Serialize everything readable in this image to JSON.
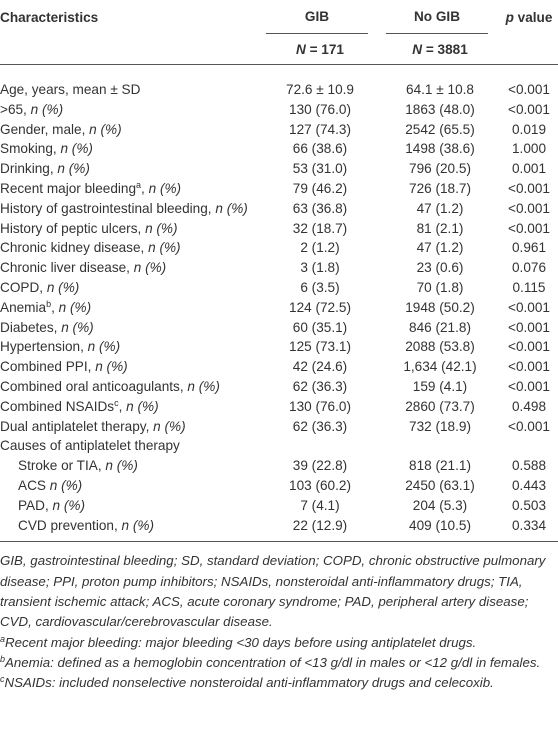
{
  "header": {
    "characteristics": "Characteristics",
    "gib": "GIB",
    "nogib": "No GIB",
    "p_value": {
      "symbol": "p",
      "text": "value"
    },
    "gib_n": {
      "symbol": "N",
      "text": "= 171"
    },
    "nogib_n": {
      "symbol": "N",
      "text": "= 3881"
    }
  },
  "table": {
    "rows": [
      {
        "label": "Age, years, mean ± SD",
        "gib": "72.6 ± 10.9",
        "nogib": "64.1 ± 10.8",
        "p": "<0.001"
      },
      {
        "label": ">65,",
        "unit": "n (%)",
        "gib": "130 (76.0)",
        "nogib": "1863 (48.0)",
        "p": "<0.001"
      },
      {
        "label": "Gender, male,",
        "unit": "n (%)",
        "gib": "127 (74.3)",
        "nogib": "2542 (65.5)",
        "p": "0.019"
      },
      {
        "label": "Smoking,",
        "unit": "n (%)",
        "gib": "66 (38.6)",
        "nogib": "1498 (38.6)",
        "p": "1.000"
      },
      {
        "label": "Drinking,",
        "unit": "n (%)",
        "gib": "53 (31.0)",
        "nogib": "796 (20.5)",
        "p": "0.001"
      },
      {
        "label": "Recent major bleeding",
        "sup": "a",
        "after": ",",
        "unit": "n (%)",
        "gib": "79 (46.2)",
        "nogib": "726 (18.7)",
        "p": "<0.001"
      },
      {
        "label": "History of gastrointestinal bleeding,",
        "unit": "n (%)",
        "gib": "63 (36.8)",
        "nogib": "47 (1.2)",
        "p": "<0.001"
      },
      {
        "label": "History of peptic ulcers,",
        "unit": "n (%)",
        "gib": "32 (18.7)",
        "nogib": "81 (2.1)",
        "p": "<0.001"
      },
      {
        "label": "Chronic kidney disease,",
        "unit": "n (%)",
        "gib": "2 (1.2)",
        "nogib": "47 (1.2)",
        "p": "0.961"
      },
      {
        "label": "Chronic liver disease,",
        "unit": "n (%)",
        "gib": "3 (1.8)",
        "nogib": "23 (0.6)",
        "p": "0.076"
      },
      {
        "label": "COPD,",
        "unit": "n (%)",
        "gib": "6 (3.5)",
        "nogib": "70 (1.8)",
        "p": "0.115"
      },
      {
        "label": "Anemia",
        "sup": "b",
        "after": ",",
        "unit": "n (%)",
        "gib": "124 (72.5)",
        "nogib": "1948 (50.2)",
        "p": "<0.001"
      },
      {
        "label": "Diabetes,",
        "unit": "n (%)",
        "gib": "60 (35.1)",
        "nogib": "846 (21.8)",
        "p": "<0.001"
      },
      {
        "label": "Hypertension,",
        "unit": "n (%)",
        "gib": "125 (73.1)",
        "nogib": "2088 (53.8)",
        "p": "<0.001"
      },
      {
        "label": "Combined PPI,",
        "unit": "n (%)",
        "gib": "42 (24.6)",
        "nogib": "1,634 (42.1)",
        "p": "<0.001"
      },
      {
        "label": "Combined oral anticoagulants,",
        "unit": "n (%)",
        "gib": "62 (36.3)",
        "nogib": "159 (4.1)",
        "p": "<0.001"
      },
      {
        "label": "Combined NSAIDs",
        "sup": "c",
        "after": ",",
        "unit": "n (%)",
        "gib": "130 (76.0)",
        "nogib": "2860 (73.7)",
        "p": "0.498"
      },
      {
        "label": "Dual antiplatelet therapy,",
        "unit": "n (%)",
        "gib": "62 (36.3)",
        "nogib": "732 (18.9)",
        "p": "<0.001"
      }
    ],
    "subgroup": {
      "title": "Causes of antiplatelet therapy",
      "rows": [
        {
          "label": "Stroke or TIA,",
          "unit": "n (%)",
          "gib": "39 (22.8)",
          "nogib": "818 (21.1)",
          "p": "0.588"
        },
        {
          "label": "ACS",
          "unit": "n (%)",
          "gib": "103 (60.2)",
          "nogib": "2450 (63.1)",
          "p": "0.443"
        },
        {
          "label": "PAD,",
          "unit": "n (%)",
          "gib": "7 (4.1)",
          "nogib": "204 (5.3)",
          "p": "0.503"
        },
        {
          "label": "CVD prevention,",
          "unit": "n (%)",
          "gib": "22 (12.9)",
          "nogib": "409 (10.5)",
          "p": "0.334"
        }
      ]
    }
  },
  "footnotes": [
    {
      "text": "GIB, gastrointestinal bleeding; SD, standard deviation; COPD, chronic obstructive pulmonary disease; PPI, proton pump inhibitors; NSAIDs, nonsteroidal anti-inflammatory drugs; TIA, transient ischemic attack; ACS, acute coronary syndrome; PAD, peripheral artery disease; CVD, cardiovascular/cerebrovascular disease."
    },
    {
      "sup": "a",
      "text": "Recent major bleeding: major bleeding <30 days before using antiplatelet drugs."
    },
    {
      "sup": "b",
      "text": "Anemia: defined as a hemoglobin concentration of <13 g/dl in males or <12 g/dl in females."
    },
    {
      "sup": "c",
      "text": "NSAIDs: included nonselective nonsteroidal anti-inflammatory drugs and celecoxib."
    }
  ]
}
